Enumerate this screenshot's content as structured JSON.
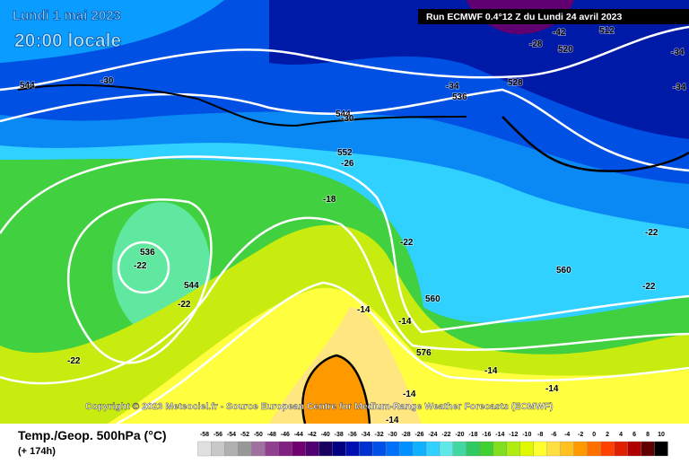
{
  "header": {
    "date": "Lundi 1 mai 2023",
    "time": "20:00 locale",
    "run": "Run ECMWF 0.4°12 Z du Lundi 24 avril 2023"
  },
  "copyright": "Copyright © 2023 Meteociel.fr - Source European Centre for Medium-Range Weather Forecasts (ECMWF)",
  "map": {
    "contour_labels": [
      "544",
      "-30",
      "-34",
      "536",
      "528",
      "544",
      "-30",
      "552",
      "-26",
      "-18",
      "-22",
      "536",
      "-22",
      "544",
      "-22",
      "560",
      "560",
      "-22",
      "-22",
      "-14",
      "-14",
      "576",
      "-14",
      "-14",
      "-14",
      "-22",
      "-14",
      "-28",
      "-42",
      "512",
      "520",
      "-34",
      "-34"
    ]
  },
  "legend": {
    "title": "Temp./Geop. 500hPa (°C)",
    "lead_time": "(+ 174h)",
    "labels": [
      "-58",
      "-56",
      "-54",
      "-52",
      "-50",
      "-48",
      "-46",
      "-44",
      "-42",
      "-40",
      "-38",
      "-36",
      "-34",
      "-32",
      "-30",
      "-28",
      "-26",
      "-24",
      "-22",
      "-20",
      "-18",
      "-16",
      "-14",
      "-12",
      "-10",
      "-8",
      "-6",
      "-4",
      "-2",
      "0",
      "2",
      "4",
      "6",
      "8",
      "10"
    ],
    "colors": [
      "#e0e0e0",
      "#c8c8c8",
      "#b0b0b0",
      "#989898",
      "#a070a0",
      "#904090",
      "#802080",
      "#700070",
      "#500070",
      "#1a0060",
      "#000080",
      "#0010b0",
      "#0030d0",
      "#0050e8",
      "#0070f8",
      "#0090ff",
      "#10b0ff",
      "#30d0ff",
      "#60e8e8",
      "#40d8a0",
      "#30c860",
      "#40d030",
      "#80e020",
      "#b0ec10",
      "#e0f800",
      "#ffff30",
      "#ffe040",
      "#ffc020",
      "#ff9900",
      "#ff7000",
      "#ff4000",
      "#e02000",
      "#b00000",
      "#600000",
      "#000000"
    ]
  }
}
